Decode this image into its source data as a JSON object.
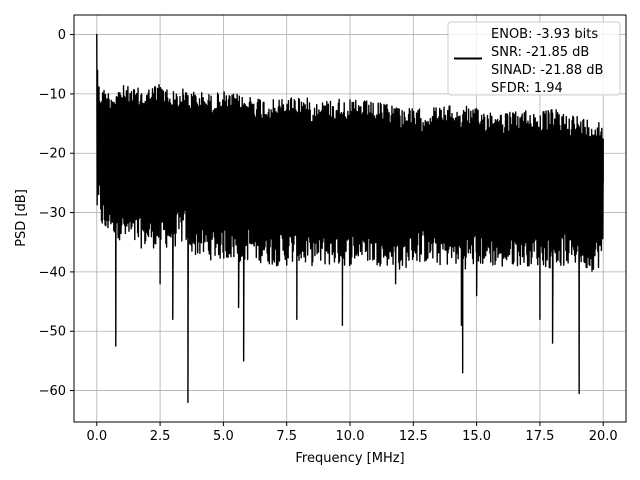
{
  "chart_data": {
    "type": "line",
    "title": "",
    "xlabel": "Frequency [MHz]",
    "ylabel": "PSD [dB]",
    "xlim": [
      -0.9,
      20.9
    ],
    "ylim": [
      -65.3,
      3.3
    ],
    "xticks": [
      0.0,
      2.5,
      5.0,
      7.5,
      10.0,
      12.5,
      15.0,
      17.5,
      20.0
    ],
    "xtick_labels": [
      "0.0",
      "2.5",
      "5.0",
      "7.5",
      "10.0",
      "12.5",
      "15.0",
      "17.5",
      "20.0"
    ],
    "yticks": [
      0,
      -10,
      -20,
      -30,
      -40,
      -50,
      -60
    ],
    "ytick_labels": [
      "0",
      "−10",
      "−20",
      "−30",
      "−40",
      "−50",
      "−60"
    ],
    "grid": true,
    "legend_position": "top-right",
    "line_color": "#000000",
    "series": [
      {
        "name": "ENOB: -3.93 bits\nSNR: -21.85 dB\nSINAD: -21.88 dB\nSFDR: 1.94",
        "x": [
          0.0,
          0.03,
          0.07,
          0.12,
          0.2,
          0.35,
          0.5,
          0.75,
          1.0,
          1.5,
          2.0,
          2.5,
          3.0,
          3.5,
          3.6,
          3.75,
          4.0,
          4.5,
          5.0,
          5.25,
          5.6,
          5.8,
          6.0,
          6.5,
          7.0,
          7.5,
          7.9,
          8.5,
          9.0,
          9.7,
          10.0,
          10.5,
          11.0,
          11.8,
          12.0,
          12.5,
          13.0,
          13.5,
          14.0,
          14.4,
          14.45,
          14.6,
          15.0,
          15.5,
          16.0,
          16.5,
          17.0,
          17.5,
          18.0,
          18.5,
          19.0,
          19.05,
          19.5,
          20.0
        ],
        "values": [
          0.0,
          -6.0,
          -12.0,
          -20.0,
          -25.0,
          -30.0,
          -22.0,
          -52.5,
          -20.0,
          -25.0,
          -30.0,
          -42.0,
          -48.0,
          -25.0,
          -62.0,
          -22.0,
          -35.0,
          -28.0,
          -30.0,
          -25.0,
          -46.0,
          -55.0,
          -30.0,
          -22.0,
          -30.0,
          -38.0,
          -48.0,
          -30.0,
          -25.0,
          -49.0,
          -30.0,
          -25.0,
          -32.0,
          -42.0,
          -25.0,
          -30.0,
          -30.0,
          -28.0,
          -30.0,
          -49.0,
          -57.0,
          -30.0,
          -44.0,
          -30.0,
          -30.0,
          -25.0,
          -30.0,
          -48.0,
          -52.0,
          -30.0,
          -25.0,
          -60.5,
          -32.0,
          -25.0
        ],
        "upper_envelope": [
          0.0,
          -7.5,
          -8.0,
          -8.5,
          -9.0,
          -9.0,
          -9.5,
          -9.0,
          -8.5,
          -9.0,
          -9.0,
          -8.0,
          -9.5,
          -9.0,
          -9.0,
          -9.5,
          -9.5,
          -10.0,
          -9.5,
          -10.0,
          -10.0,
          -10.5,
          -10.0,
          -10.5,
          -11.0,
          -10.5,
          -10.0,
          -11.0,
          -11.0,
          -10.5,
          -11.0,
          -11.0,
          -11.5,
          -11.5,
          -12.0,
          -12.5,
          -12.5,
          -12.0,
          -12.0,
          -12.5,
          -12.5,
          -12.0,
          -12.5,
          -12.5,
          -13.0,
          -13.0,
          -12.5,
          -13.0,
          -12.5,
          -13.0,
          -13.5,
          -14.0,
          -14.0,
          -14.5
        ],
        "lower_envelope": [
          -31.0,
          -30.0,
          -31.0,
          -30.0,
          -33.0,
          -34.5,
          -33.0,
          -34.0,
          -35.0,
          -36.0,
          -36.0,
          -36.0,
          -36.0,
          -35.0,
          -36.0,
          -37.0,
          -37.5,
          -38.0,
          -38.0,
          -38.0,
          -38.5,
          -38.5,
          -38.0,
          -38.5,
          -39.0,
          -39.0,
          -39.0,
          -39.0,
          -39.0,
          -39.0,
          -39.0,
          -38.0,
          -39.0,
          -39.0,
          -40.0,
          -38.5,
          -38.5,
          -39.0,
          -39.0,
          -39.0,
          -39.5,
          -39.5,
          -39.0,
          -39.0,
          -39.5,
          -39.0,
          -39.0,
          -39.0,
          -39.5,
          -39.0,
          -39.0,
          -39.0,
          -40.0,
          -39.0
        ]
      }
    ]
  }
}
